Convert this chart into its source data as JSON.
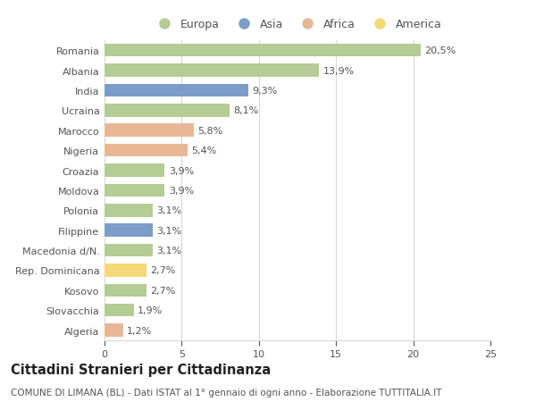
{
  "countries": [
    "Romania",
    "Albania",
    "India",
    "Ucraina",
    "Marocco",
    "Nigeria",
    "Croazia",
    "Moldova",
    "Polonia",
    "Filippine",
    "Macedonia d/N.",
    "Rep. Dominicana",
    "Kosovo",
    "Slovacchia",
    "Algeria"
  ],
  "values": [
    20.5,
    13.9,
    9.3,
    8.1,
    5.8,
    5.4,
    3.9,
    3.9,
    3.1,
    3.1,
    3.1,
    2.7,
    2.7,
    1.9,
    1.2
  ],
  "labels": [
    "20,5%",
    "13,9%",
    "9,3%",
    "8,1%",
    "5,8%",
    "5,4%",
    "3,9%",
    "3,9%",
    "3,1%",
    "3,1%",
    "3,1%",
    "2,7%",
    "2,7%",
    "1,9%",
    "1,2%"
  ],
  "continents": [
    "Europa",
    "Europa",
    "Asia",
    "Europa",
    "Africa",
    "Africa",
    "Europa",
    "Europa",
    "Europa",
    "Asia",
    "Europa",
    "America",
    "Europa",
    "Europa",
    "Africa"
  ],
  "continent_colors": {
    "Europa": "#b5cc96",
    "Asia": "#7b9dc8",
    "Africa": "#e8b896",
    "America": "#f5d878"
  },
  "legend_order": [
    "Europa",
    "Asia",
    "Africa",
    "America"
  ],
  "xlim": [
    0,
    25
  ],
  "xticks": [
    0,
    5,
    10,
    15,
    20,
    25
  ],
  "title": "Cittadini Stranieri per Cittadinanza",
  "subtitle": "COMUNE DI LIMANA (BL) - Dati ISTAT al 1° gennaio di ogni anno - Elaborazione TUTTITALIA.IT",
  "bg_color": "#ffffff",
  "grid_color": "#d8d8d8",
  "bar_height": 0.65,
  "label_fontsize": 8,
  "title_fontsize": 10.5,
  "subtitle_fontsize": 7.5,
  "tick_fontsize": 8,
  "legend_fontsize": 9
}
